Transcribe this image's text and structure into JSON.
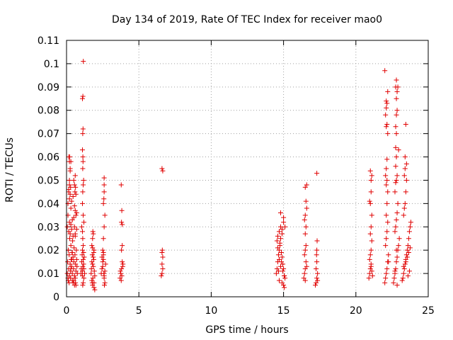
{
  "chart_data": {
    "type": "scatter",
    "title": "Day 134 of 2019, Rate Of TEC Index for receiver mao0",
    "xlabel": "GPS time / hours",
    "ylabel": "ROTI / TECUs",
    "xlim": [
      0,
      25
    ],
    "ylim": [
      0,
      0.11
    ],
    "xticks": [
      0,
      5,
      10,
      15,
      20,
      25
    ],
    "xtick_labels": [
      "0",
      "5",
      "10",
      "15",
      "20",
      "25"
    ],
    "yticks": [
      0,
      0.01,
      0.02,
      0.03,
      0.04,
      0.05,
      0.06,
      0.07,
      0.08,
      0.09,
      0.1,
      0.11
    ],
    "ytick_labels": [
      "0",
      "0.01",
      "0.02",
      "0.03",
      "0.04",
      "0.05",
      "0.06",
      "0.07",
      "0.08",
      "0.09",
      "0.1",
      "0.11"
    ],
    "grid": true,
    "marker": "+",
    "marker_color": "#e00000",
    "series": [
      {
        "name": "ROTI",
        "x": [
          0.05,
          0.08,
          0.1,
          0.12,
          0.15,
          0.18,
          0.2,
          0.22,
          0.25,
          0.28,
          0.3,
          0.32,
          0.35,
          0.38,
          0.4,
          0.42,
          0.45,
          0.48,
          0.5,
          0.52,
          0.55,
          0.58,
          0.6,
          0.62,
          0.65,
          0.68,
          0.7,
          0.72,
          0.75,
          0.05,
          0.1,
          0.15,
          0.2,
          0.25,
          0.3,
          0.35,
          0.4,
          0.45,
          0.5,
          0.55,
          0.6,
          0.65,
          0.7,
          0.1,
          0.15,
          0.2,
          0.3,
          0.35,
          0.45,
          0.55,
          0.6,
          0.65,
          0.7,
          0.2,
          0.25,
          0.3,
          0.5,
          0.55,
          0.6,
          0.15,
          0.2,
          0.22,
          0.25,
          0.12,
          0.18,
          0.28,
          0.4,
          0.45,
          0.5,
          0.55,
          0.6,
          0.62,
          0.65,
          0.3,
          0.35,
          0.4,
          0.15,
          0.2,
          0.25,
          0.28,
          0.58,
          0.62,
          1.0,
          1.02,
          1.05,
          1.08,
          1.1,
          1.12,
          1.15,
          1.18,
          1.2,
          1.22,
          1.25,
          1.1,
          1.12,
          1.15,
          1.18,
          1.05,
          1.1,
          1.15,
          1.2,
          1.1,
          1.12,
          1.15,
          1.12,
          1.13,
          1.14,
          1.12,
          1.14,
          1.1,
          1.13,
          1.16,
          1.1,
          1.18,
          1.12,
          1.15,
          1.2,
          1.1,
          1.7,
          1.72,
          1.75,
          1.78,
          1.8,
          1.82,
          1.85,
          1.88,
          1.9,
          1.92,
          1.95,
          1.75,
          1.8,
          1.85,
          1.9,
          1.95,
          1.78,
          1.82,
          1.88,
          1.8,
          1.85,
          1.75,
          1.9,
          1.8,
          2.4,
          2.45,
          2.5,
          2.55,
          2.6,
          2.65,
          2.7,
          2.45,
          2.5,
          2.55,
          2.6,
          2.65,
          2.5,
          2.55,
          2.6,
          2.65,
          2.55,
          2.6,
          2.58,
          2.6,
          2.6,
          2.62,
          2.58,
          2.55,
          3.7,
          3.75,
          3.8,
          3.85,
          3.9,
          3.72,
          3.78,
          3.82,
          3.88,
          3.8,
          3.85,
          3.8,
          3.85,
          3.82,
          3.78,
          6.55,
          6.6,
          6.65,
          6.6,
          6.65,
          6.6,
          6.62,
          6.65,
          6.6,
          14.5,
          14.55,
          14.6,
          14.65,
          14.7,
          14.75,
          14.8,
          14.85,
          14.9,
          14.95,
          15.0,
          15.05,
          15.1,
          14.55,
          14.6,
          14.7,
          14.8,
          14.9,
          15.0,
          14.6,
          14.7,
          14.8,
          14.95,
          14.7,
          14.9,
          15.0,
          15.05,
          15.1,
          15.0,
          14.8,
          14.65,
          14.9,
          15.05,
          14.75,
          14.85,
          16.4,
          16.45,
          16.5,
          16.55,
          16.6,
          16.45,
          16.5,
          16.55,
          16.5,
          16.55,
          16.45,
          16.5,
          16.6,
          16.55,
          16.5,
          16.6,
          16.5,
          17.2,
          17.25,
          17.3,
          17.35,
          17.25,
          17.3,
          17.28,
          17.3,
          17.32,
          17.3,
          17.35,
          20.9,
          20.95,
          21.0,
          21.05,
          21.1,
          21.15,
          20.95,
          21.0,
          21.05,
          21.1,
          21.0,
          21.05,
          21.1,
          21.0,
          21.05,
          21.05,
          21.1,
          21.0,
          20.95,
          21.05,
          22.0,
          22.05,
          22.1,
          22.15,
          22.2,
          22.25,
          22.05,
          22.1,
          22.15,
          22.2,
          22.1,
          22.15,
          22.2,
          22.1,
          22.15,
          22.05,
          22.1,
          22.15,
          22.2,
          22.1,
          22.15,
          22.05,
          22.1,
          22.15,
          22.1,
          22.2,
          22.0,
          22.25,
          22.6,
          22.65,
          22.7,
          22.75,
          22.8,
          22.85,
          22.9,
          22.95,
          23.0,
          22.7,
          22.75,
          22.8,
          22.85,
          22.9,
          22.7,
          22.75,
          22.8,
          22.85,
          22.75,
          22.8,
          22.75,
          22.8,
          22.75,
          22.8,
          22.85,
          22.8,
          22.85,
          22.75,
          22.9,
          22.8,
          22.95,
          22.7,
          22.8,
          22.85,
          23.2,
          23.25,
          23.3,
          23.35,
          23.4,
          23.45,
          23.5,
          23.55,
          23.6,
          23.65,
          23.7,
          23.75,
          23.8,
          23.3,
          23.35,
          23.4,
          23.45,
          23.5,
          23.35,
          23.4,
          23.5,
          23.4,
          23.45,
          23.6,
          23.7,
          23.3,
          23.45,
          23.55,
          23.65,
          23.75
        ],
        "y": [
          0.01,
          0.015,
          0.008,
          0.02,
          0.012,
          0.018,
          0.009,
          0.025,
          0.014,
          0.011,
          0.022,
          0.016,
          0.013,
          0.019,
          0.01,
          0.024,
          0.017,
          0.012,
          0.015,
          0.021,
          0.009,
          0.018,
          0.026,
          0.014,
          0.011,
          0.02,
          0.016,
          0.013,
          0.01,
          0.03,
          0.035,
          0.028,
          0.032,
          0.027,
          0.031,
          0.029,
          0.033,
          0.026,
          0.034,
          0.03,
          0.027,
          0.035,
          0.029,
          0.04,
          0.045,
          0.042,
          0.038,
          0.041,
          0.043,
          0.039,
          0.037,
          0.044,
          0.036,
          0.05,
          0.055,
          0.058,
          0.05,
          0.048,
          0.052,
          0.06,
          0.058,
          0.06,
          0.054,
          0.007,
          0.006,
          0.008,
          0.007,
          0.006,
          0.007,
          0.005,
          0.008,
          0.006,
          0.005,
          0.012,
          0.016,
          0.019,
          0.046,
          0.048,
          0.044,
          0.047,
          0.045,
          0.047,
          0.01,
          0.012,
          0.015,
          0.018,
          0.011,
          0.013,
          0.016,
          0.014,
          0.012,
          0.017,
          0.01,
          0.02,
          0.025,
          0.022,
          0.019,
          0.03,
          0.028,
          0.035,
          0.032,
          0.04,
          0.045,
          0.048,
          0.055,
          0.06,
          0.058,
          0.07,
          0.072,
          0.085,
          0.086,
          0.101,
          0.063,
          0.05,
          0.005,
          0.006,
          0.008,
          0.009,
          0.01,
          0.012,
          0.015,
          0.018,
          0.005,
          0.008,
          0.013,
          0.016,
          0.02,
          0.011,
          0.009,
          0.022,
          0.025,
          0.027,
          0.004,
          0.003,
          0.006,
          0.028,
          0.019,
          0.014,
          0.017,
          0.007,
          0.006,
          0.021,
          0.01,
          0.012,
          0.015,
          0.018,
          0.008,
          0.011,
          0.014,
          0.017,
          0.013,
          0.016,
          0.009,
          0.006,
          0.02,
          0.025,
          0.03,
          0.035,
          0.04,
          0.045,
          0.042,
          0.048,
          0.051,
          0.005,
          0.01,
          0.019,
          0.008,
          0.01,
          0.012,
          0.015,
          0.014,
          0.011,
          0.007,
          0.009,
          0.013,
          0.02,
          0.022,
          0.032,
          0.031,
          0.037,
          0.048,
          0.009,
          0.01,
          0.012,
          0.014,
          0.017,
          0.019,
          0.02,
          0.054,
          0.055,
          0.01,
          0.012,
          0.015,
          0.018,
          0.02,
          0.022,
          0.025,
          0.019,
          0.017,
          0.014,
          0.012,
          0.009,
          0.008,
          0.024,
          0.026,
          0.028,
          0.03,
          0.027,
          0.032,
          0.021,
          0.016,
          0.013,
          0.011,
          0.007,
          0.006,
          0.005,
          0.004,
          0.03,
          0.034,
          0.036,
          0.011,
          0.029,
          0.009,
          0.023,
          0.015,
          0.008,
          0.01,
          0.012,
          0.015,
          0.013,
          0.018,
          0.02,
          0.022,
          0.027,
          0.03,
          0.033,
          0.035,
          0.038,
          0.041,
          0.047,
          0.048,
          0.007,
          0.005,
          0.006,
          0.008,
          0.01,
          0.012,
          0.015,
          0.018,
          0.02,
          0.024,
          0.053,
          0.007,
          0.008,
          0.01,
          0.012,
          0.014,
          0.011,
          0.009,
          0.016,
          0.018,
          0.02,
          0.024,
          0.027,
          0.03,
          0.035,
          0.04,
          0.045,
          0.05,
          0.052,
          0.054,
          0.041,
          0.013,
          0.006,
          0.008,
          0.01,
          0.012,
          0.015,
          0.018,
          0.022,
          0.025,
          0.028,
          0.032,
          0.035,
          0.04,
          0.045,
          0.048,
          0.05,
          0.052,
          0.055,
          0.059,
          0.07,
          0.073,
          0.074,
          0.078,
          0.081,
          0.083,
          0.084,
          0.088,
          0.097,
          0.015,
          0.006,
          0.008,
          0.01,
          0.012,
          0.015,
          0.017,
          0.02,
          0.022,
          0.025,
          0.028,
          0.03,
          0.033,
          0.036,
          0.04,
          0.045,
          0.049,
          0.05,
          0.052,
          0.056,
          0.06,
          0.064,
          0.07,
          0.073,
          0.078,
          0.08,
          0.085,
          0.088,
          0.09,
          0.09,
          0.093,
          0.063,
          0.011,
          0.02,
          0.005,
          0.007,
          0.008,
          0.01,
          0.012,
          0.014,
          0.016,
          0.018,
          0.02,
          0.022,
          0.025,
          0.028,
          0.03,
          0.032,
          0.035,
          0.038,
          0.04,
          0.045,
          0.05,
          0.052,
          0.055,
          0.057,
          0.06,
          0.074,
          0.009,
          0.011,
          0.013,
          0.015,
          0.017,
          0.019,
          0.021
        ]
      }
    ]
  }
}
